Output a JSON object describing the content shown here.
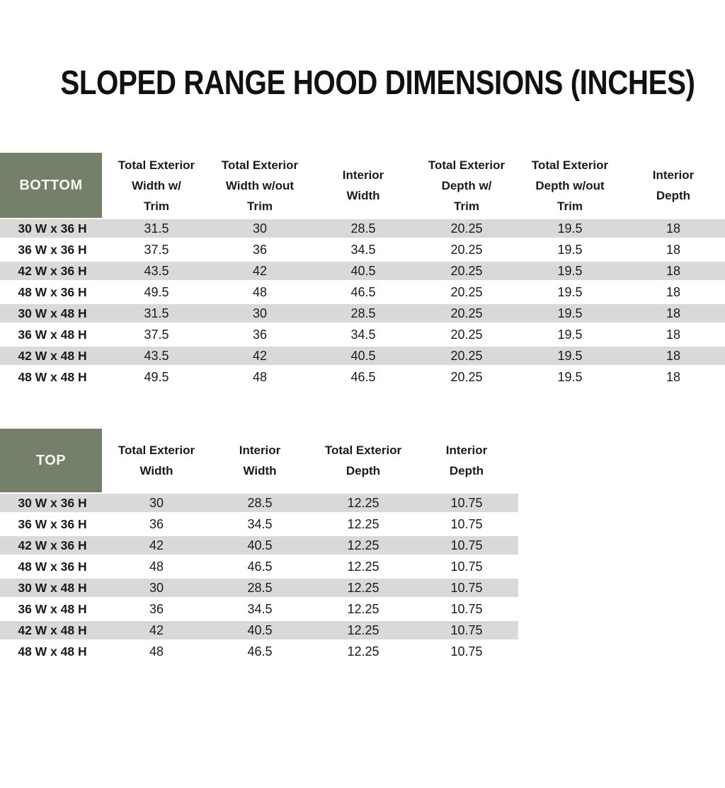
{
  "title": "SLOPED RANGE HOOD DIMENSIONS (INCHES)",
  "colors": {
    "header_fill": "#75806A",
    "stripe": "#D9D9D9",
    "header_text": "#F7F7F2",
    "body_text": "#1A1A1A"
  },
  "tables": [
    {
      "label": "BOTTOM",
      "columns": [
        "Total Exterior\nWidth w/\nTrim",
        "Total Exterior\nWidth w/out\nTrim",
        "Interior\nWidth",
        "Total Exterior\nDepth w/\nTrim",
        "Total Exterior\nDepth w/out\nTrim",
        "Interior\nDepth"
      ],
      "rows": [
        {
          "label": "30 W x 36 H",
          "values": [
            "31.5",
            "30",
            "28.5",
            "20.25",
            "19.5",
            "18"
          ]
        },
        {
          "label": "36 W x 36 H",
          "values": [
            "37.5",
            "36",
            "34.5",
            "20.25",
            "19.5",
            "18"
          ]
        },
        {
          "label": "42 W x 36 H",
          "values": [
            "43.5",
            "42",
            "40.5",
            "20.25",
            "19.5",
            "18"
          ]
        },
        {
          "label": "48 W x 36 H",
          "values": [
            "49.5",
            "48",
            "46.5",
            "20.25",
            "19.5",
            "18"
          ]
        },
        {
          "label": "30 W x 48 H",
          "values": [
            "31.5",
            "30",
            "28.5",
            "20.25",
            "19.5",
            "18"
          ]
        },
        {
          "label": "36 W x 48 H",
          "values": [
            "37.5",
            "36",
            "34.5",
            "20.25",
            "19.5",
            "18"
          ]
        },
        {
          "label": "42 W x 48 H",
          "values": [
            "43.5",
            "42",
            "40.5",
            "20.25",
            "19.5",
            "18"
          ]
        },
        {
          "label": "48 W x 48 H",
          "values": [
            "49.5",
            "48",
            "46.5",
            "20.25",
            "19.5",
            "18"
          ]
        }
      ]
    },
    {
      "label": "TOP",
      "columns": [
        "Total Exterior\nWidth",
        "Interior\nWidth",
        "Total Exterior\nDepth",
        "Interior\nDepth"
      ],
      "rows": [
        {
          "label": "30 W x 36 H",
          "values": [
            "30",
            "28.5",
            "12.25",
            "10.75"
          ]
        },
        {
          "label": "36 W x 36 H",
          "values": [
            "36",
            "34.5",
            "12.25",
            "10.75"
          ]
        },
        {
          "label": "42 W x 36 H",
          "values": [
            "42",
            "40.5",
            "12.25",
            "10.75"
          ]
        },
        {
          "label": "48 W x 36 H",
          "values": [
            "48",
            "46.5",
            "12.25",
            "10.75"
          ]
        },
        {
          "label": "30 W x 48 H",
          "values": [
            "30",
            "28.5",
            "12.25",
            "10.75"
          ]
        },
        {
          "label": "36 W x 48 H",
          "values": [
            "36",
            "34.5",
            "12.25",
            "10.75"
          ]
        },
        {
          "label": "42 W x 48 H",
          "values": [
            "42",
            "40.5",
            "12.25",
            "10.75"
          ]
        },
        {
          "label": "48 W x 48 H",
          "values": [
            "48",
            "46.5",
            "12.25",
            "10.75"
          ]
        }
      ]
    }
  ]
}
